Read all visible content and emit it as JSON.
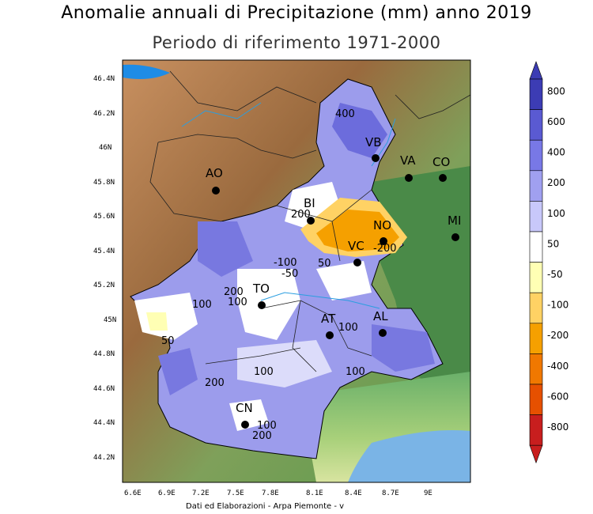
{
  "header": {
    "title": "Anomalie annuali di Precipitazione (mm) anno 2019",
    "subtitle": "Periodo di riferimento 1971-2000"
  },
  "footer": {
    "credit": "Dati ed Elaborazioni - Arpa Piemonte - v"
  },
  "axes": {
    "x_ticks": [
      "6.6E",
      "6.9E",
      "7.2E",
      "7.5E",
      "7.8E",
      "8.1E",
      "8.4E",
      "8.7E",
      "9E"
    ],
    "y_ticks": [
      "46.4N",
      "46.2N",
      "46N",
      "45.8N",
      "45.6N",
      "45.4N",
      "45.2N",
      "45N",
      "44.8N",
      "44.6N",
      "44.4N",
      "44.2N"
    ]
  },
  "cities": [
    {
      "name": "VB"
    },
    {
      "name": "VA"
    },
    {
      "name": "CO"
    },
    {
      "name": "AO"
    },
    {
      "name": "BI"
    },
    {
      "name": "NO"
    },
    {
      "name": "MI"
    },
    {
      "name": "VC"
    },
    {
      "name": "TO"
    },
    {
      "name": "AT"
    },
    {
      "name": "AL"
    },
    {
      "name": "CN"
    }
  ],
  "contour_labels": [
    "400",
    "200",
    "-200",
    "-100",
    "-50",
    "50",
    "200",
    "100",
    "100",
    "50",
    "100",
    "100",
    "100",
    "200",
    "100",
    "200"
  ],
  "legend": {
    "levels": [
      "800",
      "600",
      "400",
      "200",
      "100",
      "50",
      "-50",
      "-100",
      "-200",
      "-400",
      "-600",
      "-800"
    ],
    "colors": [
      "#3c3cb4",
      "#5a5ad2",
      "#7878e6",
      "#a0a0f0",
      "#c8c8fa",
      "#ffffff",
      "#ffffb4",
      "#ffd264",
      "#f5a000",
      "#f07800",
      "#e65000",
      "#c81e1e"
    ]
  }
}
